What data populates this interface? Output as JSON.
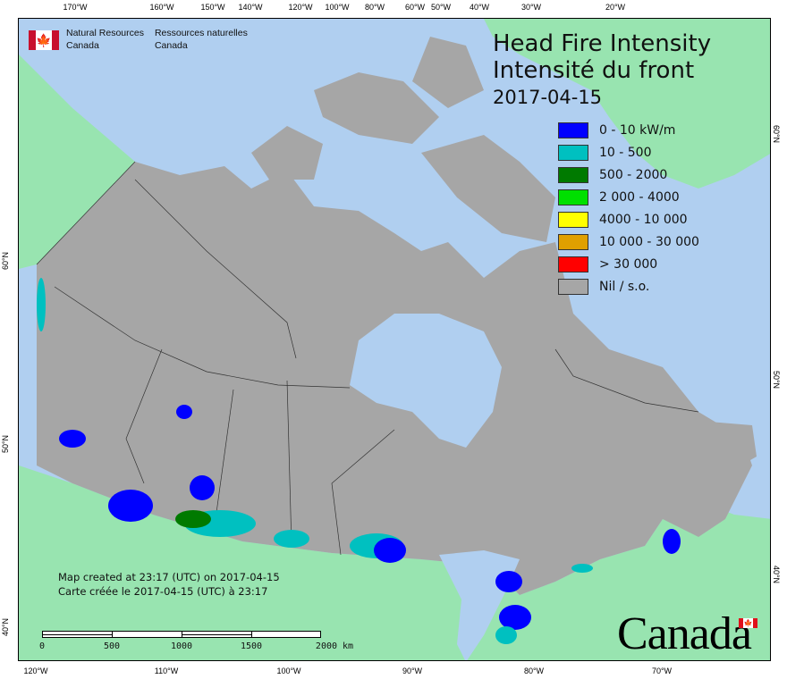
{
  "header": {
    "org_en_1": "Natural Resources",
    "org_en_2": "Canada",
    "org_fr_1": "Ressources naturelles",
    "org_fr_2": "Canada"
  },
  "title": {
    "line1": "Head Fire Intensity",
    "line2": "Intensité du front",
    "date": "2017-04-15"
  },
  "legend": [
    {
      "label": "0 - 10 kW/m",
      "color": "#0000ff"
    },
    {
      "label": "10 - 500",
      "color": "#00c0c0"
    },
    {
      "label": "500 - 2000",
      "color": "#007a00"
    },
    {
      "label": "2 000 - 4000",
      "color": "#00e000"
    },
    {
      "label": "4000 - 10 000",
      "color": "#ffff00"
    },
    {
      "label": "10 000 - 30 000",
      "color": "#e0a000"
    },
    {
      "label": "> 30 000",
      "color": "#ff0000"
    },
    {
      "label": "Nil / s.o.",
      "color": "#a6a6a6"
    }
  ],
  "created": {
    "en": "Map created at 23:17 (UTC) on 2017-04-15",
    "fr": "Carte créée le 2017-04-15 (UTC) à 23:17"
  },
  "scale": {
    "labels": [
      "0",
      "500",
      "1000",
      "1500",
      "2000 km"
    ]
  },
  "axes": {
    "top": [
      "170°W",
      "160°W",
      "150°W",
      "140°W",
      "120°W",
      "100°W",
      "80°W",
      "60°W",
      "50°W",
      "40°W",
      "30°W",
      "20°W"
    ],
    "bottom": [
      "120°W",
      "110°W",
      "100°W",
      "90°W",
      "80°W",
      "70°W"
    ],
    "left": [
      "60°N",
      "50°N",
      "40°N"
    ],
    "right": [
      "60°N",
      "50°N",
      "40°N"
    ]
  },
  "wordmark": "Canada",
  "colors": {
    "water": "#b0cff0",
    "land_other": "#98e4b0",
    "canada": "#a6a6a6"
  }
}
